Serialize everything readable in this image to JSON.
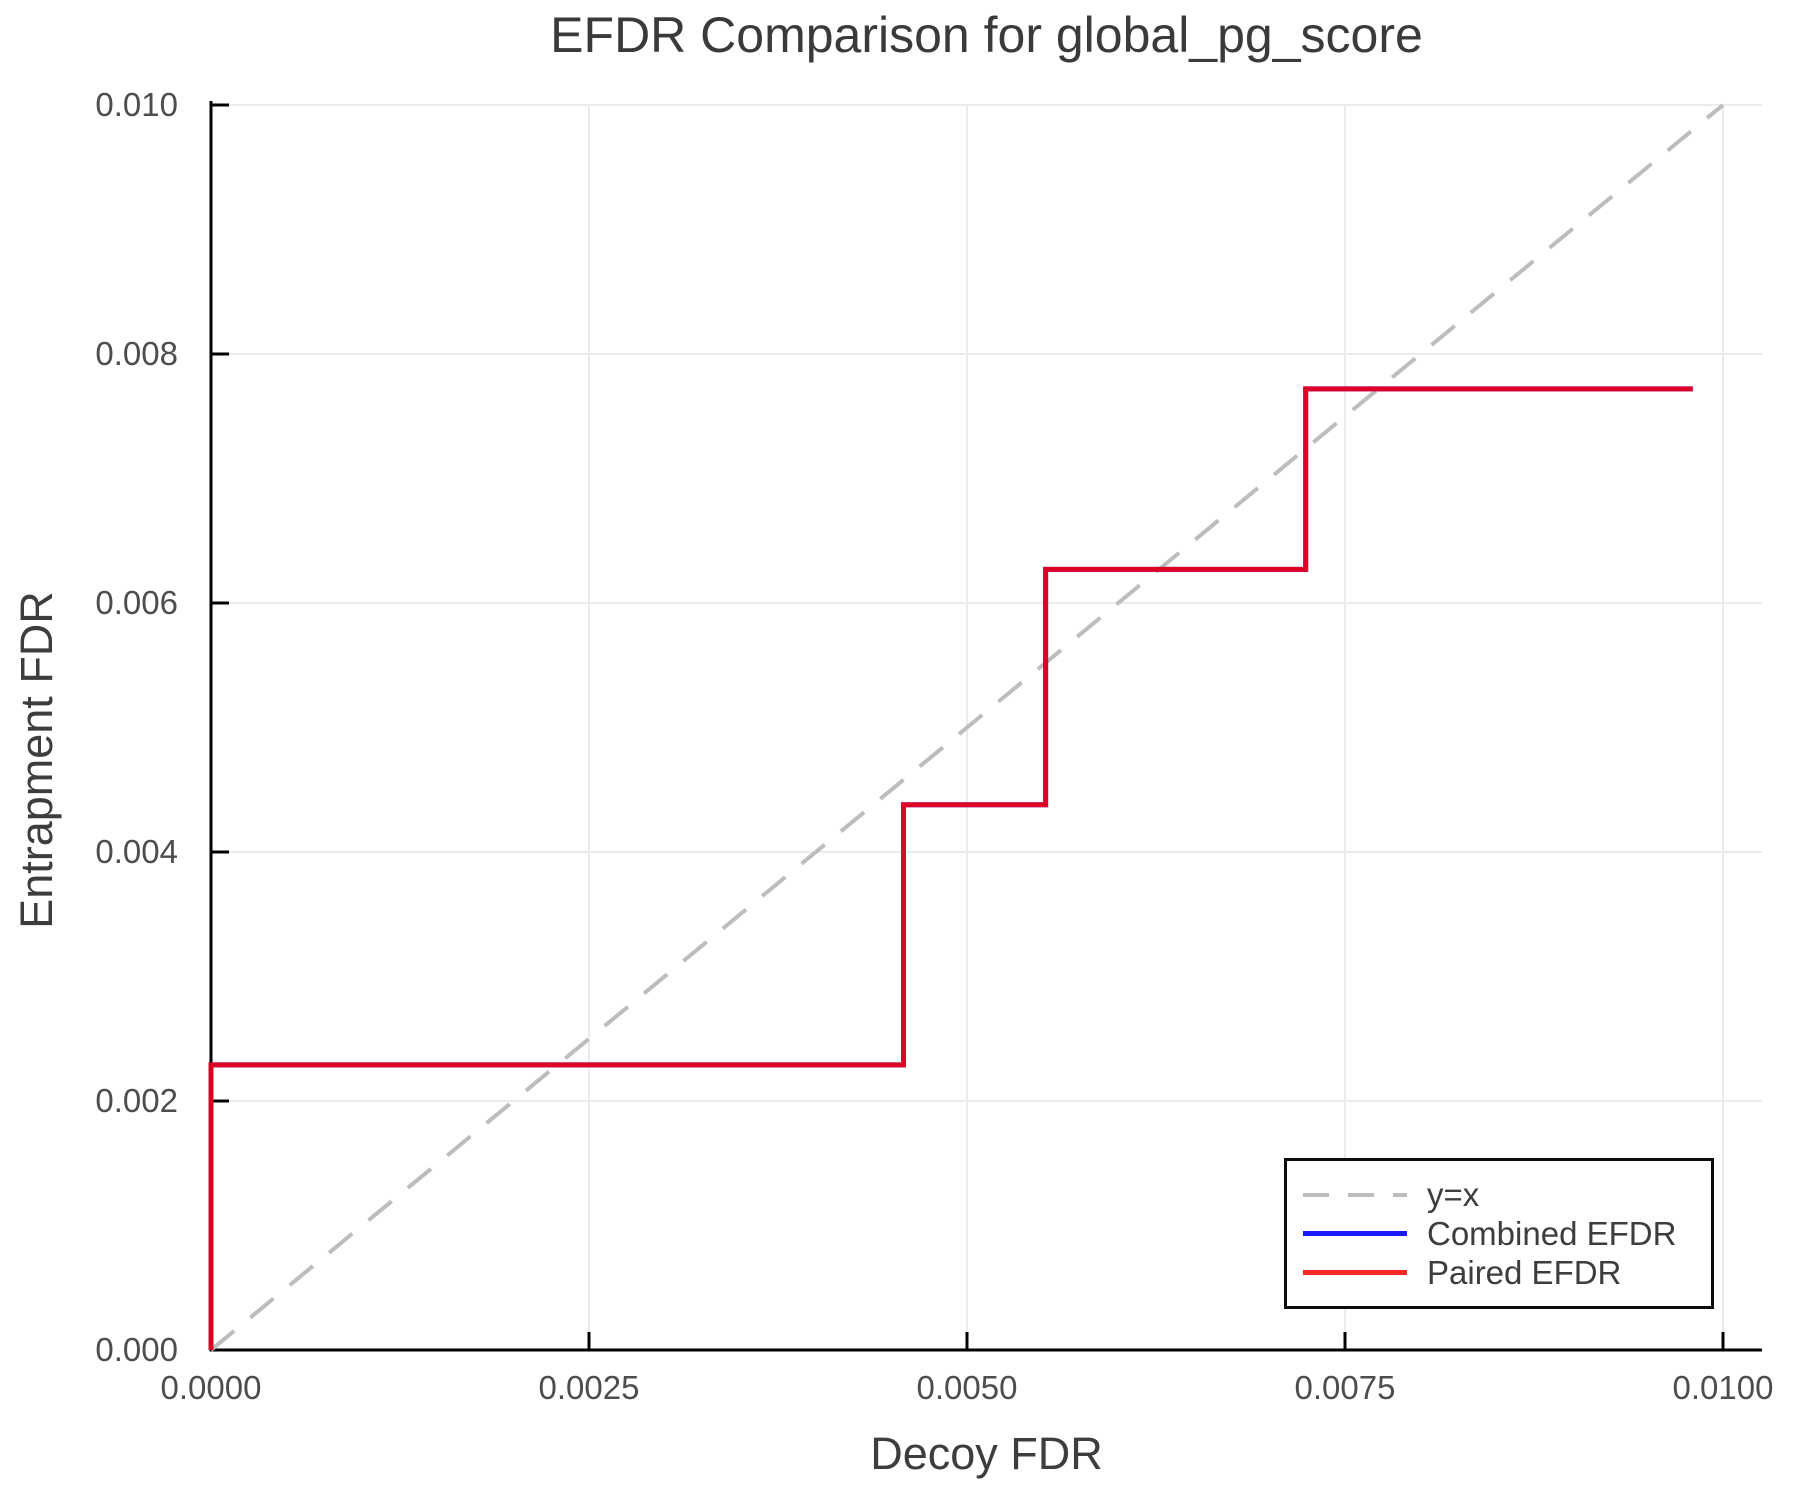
{
  "chart_data": {
    "type": "line",
    "title": "EFDR Comparison for global_pg_score",
    "xlabel": "Decoy FDR",
    "ylabel": "Entrapment FDR",
    "xlim": [
      0.0,
      0.01
    ],
    "ylim": [
      0.0,
      0.01
    ],
    "grid": true,
    "legend_position": "bottom-right",
    "x_ticks": {
      "values": [
        0.0,
        0.0025,
        0.005,
        0.0075,
        0.01
      ],
      "labels": [
        "0.0000",
        "0.0025",
        "0.0050",
        "0.0075",
        "0.0100"
      ]
    },
    "y_ticks": {
      "values": [
        0.0,
        0.002,
        0.004,
        0.006,
        0.008,
        0.01
      ],
      "labels": [
        "0.000",
        "0.002",
        "0.004",
        "0.006",
        "0.008",
        "0.010"
      ]
    },
    "series": [
      {
        "name": "y=x",
        "style": "dashed",
        "color": "#bdbdbd",
        "width": 4,
        "points": [
          [
            0.0,
            0.0
          ],
          [
            0.01,
            0.01
          ]
        ]
      },
      {
        "name": "Combined EFDR",
        "style": "solid",
        "color": "rgba(0,0,255,0.9)",
        "width": 5,
        "points": [
          [
            0.0,
            0.0
          ],
          [
            0.0,
            0.00229
          ],
          [
            0.00458,
            0.00229
          ],
          [
            0.00458,
            0.00438
          ],
          [
            0.00552,
            0.00438
          ],
          [
            0.00552,
            0.00627
          ],
          [
            0.00724,
            0.00627
          ],
          [
            0.00724,
            0.00772
          ],
          [
            0.0098,
            0.00772
          ]
        ]
      },
      {
        "name": "Paired EFDR",
        "style": "solid",
        "color": "rgba(255,0,0,0.85)",
        "width": 5,
        "points": [
          [
            0.0,
            0.0
          ],
          [
            0.0,
            0.00229
          ],
          [
            0.00458,
            0.00229
          ],
          [
            0.00458,
            0.00438
          ],
          [
            0.00552,
            0.00438
          ],
          [
            0.00552,
            0.00627
          ],
          [
            0.00724,
            0.00627
          ],
          [
            0.00724,
            0.00772
          ],
          [
            0.0098,
            0.00772
          ]
        ]
      }
    ]
  },
  "legend": {
    "items": [
      {
        "label": "y=x"
      },
      {
        "label": "Combined EFDR"
      },
      {
        "label": "Paired EFDR"
      }
    ]
  },
  "colors": {
    "spine": "#000000",
    "grid": "#ececec",
    "tick_text": "#4d4d4d",
    "label_text": "#3a3a3a",
    "identity_line": "#bdbdbd",
    "combined_line": "rgba(0,0,255,0.9)",
    "paired_line": "rgba(255,0,0,0.85)"
  }
}
